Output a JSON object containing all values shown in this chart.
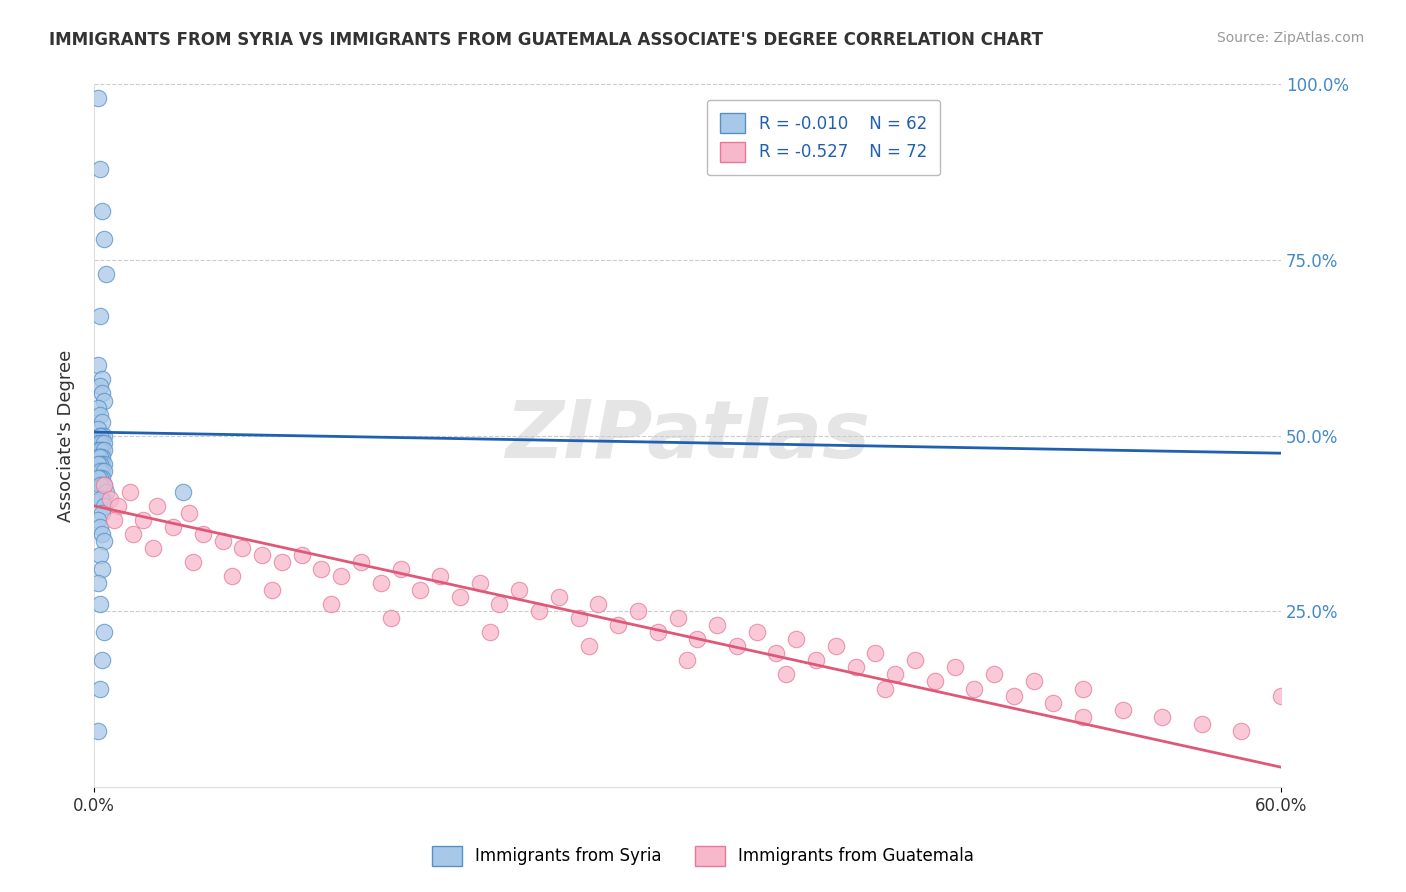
{
  "title": "IMMIGRANTS FROM SYRIA VS IMMIGRANTS FROM GUATEMALA ASSOCIATE'S DEGREE CORRELATION CHART",
  "source": "Source: ZipAtlas.com",
  "ylabel": "Associate's Degree",
  "series1_label": "Immigrants from Syria",
  "series1_R": "-0.010",
  "series1_N": "62",
  "series1_color": "#a8c8e8",
  "series1_edge_color": "#5590c8",
  "series1_line_color": "#2060b0",
  "series2_label": "Immigrants from Guatemala",
  "series2_R": "-0.527",
  "series2_N": "72",
  "series2_color": "#f8b8cc",
  "series2_edge_color": "#e87898",
  "series2_line_color": "#e05878",
  "legend_R_color": "#2060b0",
  "yaxis_color": "#4488cc",
  "background_color": "#ffffff",
  "grid_color": "#cccccc",
  "watermark": "ZIPatlas",
  "xlim": [
    0.0,
    60.0
  ],
  "ylim": [
    0.0,
    100.0
  ],
  "yticks": [
    0,
    25,
    50,
    75,
    100
  ],
  "xticks": [
    0,
    60
  ],
  "syria_x": [
    0.2,
    0.3,
    0.4,
    0.5,
    0.6,
    0.3,
    0.2,
    0.4,
    0.3,
    0.4,
    0.5,
    0.2,
    0.3,
    0.4,
    0.2,
    0.3,
    0.4,
    0.5,
    0.3,
    0.2,
    0.4,
    0.3,
    0.5,
    0.2,
    0.4,
    0.3,
    0.5,
    0.3,
    0.4,
    0.2,
    0.3,
    0.4,
    0.5,
    0.3,
    0.2,
    0.4,
    0.3,
    0.5,
    0.4,
    0.3,
    0.2,
    0.4,
    0.5,
    0.3,
    0.6,
    4.5,
    0.4,
    0.3,
    0.5,
    0.4,
    0.2,
    0.3,
    0.4,
    0.5,
    0.3,
    0.4,
    0.2,
    0.3,
    0.5,
    0.4,
    0.3,
    0.2
  ],
  "syria_y": [
    98,
    88,
    82,
    78,
    73,
    67,
    60,
    58,
    57,
    56,
    55,
    54,
    53,
    52,
    51,
    50,
    50,
    50,
    50,
    49,
    49,
    49,
    49,
    48,
    48,
    48,
    48,
    47,
    47,
    47,
    47,
    46,
    46,
    46,
    46,
    45,
    45,
    45,
    44,
    44,
    44,
    43,
    43,
    43,
    42,
    42,
    41,
    41,
    40,
    39,
    38,
    37,
    36,
    35,
    33,
    31,
    29,
    26,
    22,
    18,
    14,
    8
  ],
  "guatemala_x": [
    0.5,
    0.8,
    1.2,
    1.8,
    2.5,
    3.2,
    4.0,
    4.8,
    5.5,
    6.5,
    7.5,
    8.5,
    9.5,
    10.5,
    11.5,
    12.5,
    13.5,
    14.5,
    15.5,
    16.5,
    17.5,
    18.5,
    19.5,
    20.5,
    21.5,
    22.5,
    23.5,
    24.5,
    25.5,
    26.5,
    27.5,
    28.5,
    29.5,
    30.5,
    31.5,
    32.5,
    33.5,
    34.5,
    35.5,
    36.5,
    37.5,
    38.5,
    39.5,
    40.5,
    41.5,
    42.5,
    43.5,
    44.5,
    45.5,
    46.5,
    47.5,
    48.5,
    50.0,
    52.0,
    54.0,
    56.0,
    58.0,
    60.0,
    1.0,
    2.0,
    3.0,
    5.0,
    7.0,
    9.0,
    12.0,
    15.0,
    20.0,
    25.0,
    30.0,
    35.0,
    40.0,
    50.0
  ],
  "guatemala_y": [
    43,
    41,
    40,
    42,
    38,
    40,
    37,
    39,
    36,
    35,
    34,
    33,
    32,
    33,
    31,
    30,
    32,
    29,
    31,
    28,
    30,
    27,
    29,
    26,
    28,
    25,
    27,
    24,
    26,
    23,
    25,
    22,
    24,
    21,
    23,
    20,
    22,
    19,
    21,
    18,
    20,
    17,
    19,
    16,
    18,
    15,
    17,
    14,
    16,
    13,
    15,
    12,
    14,
    11,
    10,
    9,
    8,
    13,
    38,
    36,
    34,
    32,
    30,
    28,
    26,
    24,
    22,
    20,
    18,
    16,
    14,
    10
  ]
}
